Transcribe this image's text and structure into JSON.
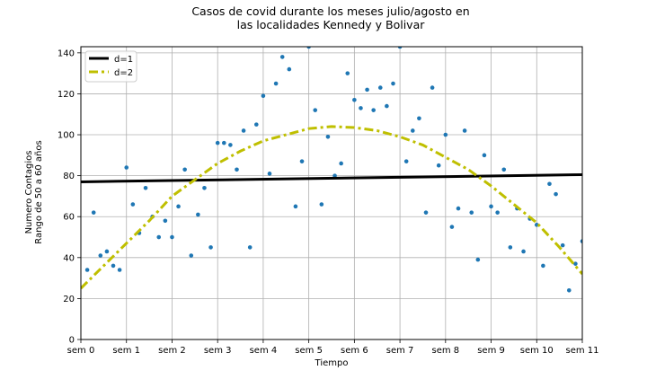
{
  "chart_data": {
    "type": "scatter",
    "title": [
      "Casos de covid durante los meses julio/agosto en",
      "las localidades Kennedy y Bolivar"
    ],
    "xlabel": "Tiempo",
    "ylabel": [
      "Numero Contagios",
      "Rango de 50 a 60 años"
    ],
    "xlim": [
      0,
      11
    ],
    "ylim": [
      0,
      143
    ],
    "x_ticks": [
      0,
      1,
      2,
      3,
      4,
      5,
      6,
      7,
      8,
      9,
      10,
      11
    ],
    "x_tick_labels": [
      "sem 0",
      "sem 1",
      "sem 2",
      "sem 3",
      "sem 4",
      "sem 5",
      "sem 6",
      "sem 7",
      "sem 8",
      "sem 9",
      "sem 10",
      "sem 11"
    ],
    "y_ticks": [
      0,
      20,
      40,
      60,
      80,
      100,
      120,
      140
    ],
    "grid": true,
    "legend_position": "top-left",
    "scatter": {
      "color": "#1f77b4",
      "x": [
        0.14,
        0.28,
        0.43,
        0.57,
        0.71,
        0.85,
        1.0,
        1.14,
        1.28,
        1.42,
        1.57,
        1.71,
        1.85,
        2.0,
        2.14,
        2.28,
        2.42,
        2.57,
        2.71,
        2.85,
        3.0,
        3.14,
        3.28,
        3.42,
        3.57,
        3.71,
        3.85,
        4.0,
        4.14,
        4.28,
        4.42,
        4.57,
        4.71,
        4.85,
        5.0,
        5.14,
        5.28,
        5.42,
        5.57,
        5.71,
        5.85,
        6.0,
        6.14,
        6.28,
        6.42,
        6.57,
        6.71,
        6.85,
        7.0,
        7.14,
        7.28,
        7.42,
        7.57,
        7.71,
        7.85,
        8.0,
        8.14,
        8.28,
        8.42,
        8.57,
        8.71,
        8.85,
        9.0,
        9.14,
        9.28,
        9.42,
        9.57,
        9.71,
        9.85,
        10.0,
        10.14,
        10.28,
        10.42,
        10.57,
        10.71,
        10.85,
        11.0
      ],
      "y": [
        34,
        62,
        41,
        43,
        36,
        34,
        84,
        66,
        52,
        74,
        60,
        50,
        58,
        50,
        65,
        83,
        41,
        61,
        74,
        45,
        96,
        96,
        95,
        83,
        102,
        45,
        105,
        119,
        81,
        125,
        138,
        132,
        65,
        87,
        143,
        112,
        66,
        99,
        80,
        86,
        130,
        117,
        113,
        122,
        112,
        123,
        114,
        125,
        143,
        87,
        102,
        108,
        62,
        123,
        85,
        100,
        55,
        64,
        102,
        62,
        39,
        90,
        65,
        62,
        83,
        45,
        64,
        43,
        59,
        56,
        36,
        76,
        71,
        46,
        24,
        37,
        48
      ]
    },
    "series": [
      {
        "name": "d=1",
        "color": "#000000",
        "style": "solid",
        "x": [
          0,
          11
        ],
        "y": [
          77,
          80.5
        ]
      },
      {
        "name": "d=2",
        "color": "#bfbf00",
        "style": "dashdot",
        "x": [
          0,
          0.5,
          1,
          1.5,
          2,
          2.5,
          3,
          3.5,
          4,
          4.5,
          5,
          5.5,
          6,
          6.5,
          7,
          7.5,
          8,
          8.5,
          9,
          9.5,
          10,
          10.5,
          11
        ],
        "y": [
          25,
          36,
          47,
          58,
          70,
          78,
          86,
          92,
          97,
          100,
          103,
          104,
          103.5,
          102,
          99,
          95,
          89,
          83,
          75,
          66,
          57,
          45,
          32
        ]
      }
    ]
  }
}
